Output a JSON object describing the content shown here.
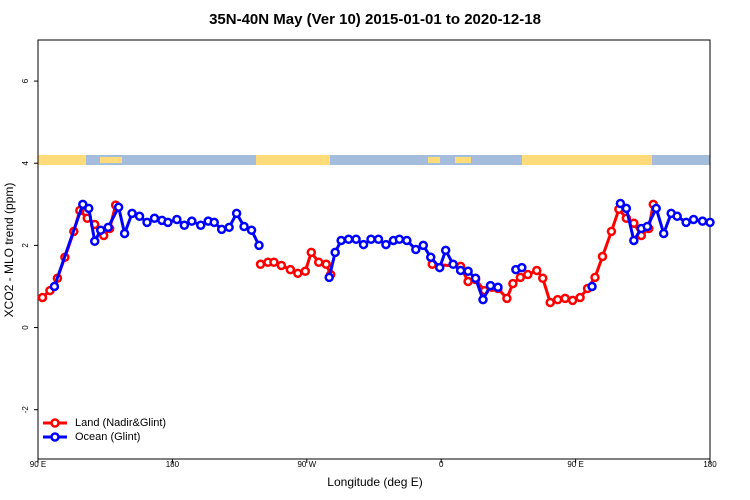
{
  "chart_data": {
    "type": "line",
    "title": "35N-40N May (Ver 10)   2015-01-01 to 2020-12-18",
    "x_label": "Longitude (deg E)",
    "y_label": "XCO2 - MLO trend (ppm)",
    "xlim": [
      90,
      540
    ],
    "xticks": [
      {
        "value": 90,
        "label": "90 E"
      },
      180,
      {
        "value": 270,
        "label": "90 W"
      },
      {
        "value": 360,
        "label": "0"
      },
      {
        "value": 450,
        "label": "90 E"
      },
      {
        "value": 540,
        "label": "180"
      }
    ],
    "ylim": [
      -3.2,
      7.0
    ],
    "yticks": [
      -2,
      0,
      2,
      4,
      6
    ],
    "legend": "bottom-left",
    "series": [
      {
        "name": "Land (Nadir&Glint)",
        "color": "#ff0000",
        "x": [
          93,
          98,
          103,
          108,
          114,
          118,
          123,
          128,
          134,
          138,
          142,
          null,
          239,
          244,
          248,
          253,
          259,
          264,
          269,
          273,
          278,
          283,
          286,
          null,
          354,
          373,
          378,
          383,
          389,
          394,
          398,
          404,
          408,
          413,
          418,
          424,
          428,
          433,
          438,
          443,
          448,
          453,
          458,
          463,
          468,
          474,
          479,
          484,
          489,
          494,
          499,
          502
        ],
        "values": [
          0.73,
          0.9,
          1.2,
          1.71,
          2.34,
          2.85,
          2.66,
          2.51,
          2.24,
          2.41,
          2.98,
          null,
          1.54,
          1.59,
          1.59,
          1.51,
          1.41,
          1.32,
          1.37,
          1.83,
          1.59,
          1.54,
          1.29,
          null,
          1.54,
          1.49,
          1.12,
          1.17,
          0.9,
          0.98,
          0.95,
          0.71,
          1.07,
          1.22,
          1.29,
          1.39,
          1.2,
          0.61,
          0.68,
          0.71,
          0.66,
          0.73,
          0.95,
          1.22,
          1.73,
          2.34,
          2.88,
          2.66,
          2.54,
          2.24,
          2.41,
          3.0
        ]
      },
      {
        "name": "Ocean (Glint)",
        "color": "#0000ff",
        "x": [
          101,
          120,
          124,
          128,
          132,
          137,
          144,
          148,
          153,
          158,
          163,
          168,
          173,
          177,
          183,
          188,
          193,
          199,
          204,
          208,
          213,
          218,
          223,
          228,
          233,
          238,
          null,
          285,
          289,
          293,
          298,
          303,
          308,
          313,
          318,
          323,
          328,
          332,
          337,
          343,
          348,
          353,
          359,
          363,
          368,
          373,
          378,
          383,
          388,
          393,
          398,
          null,
          410,
          414,
          null,
          461,
          null,
          480,
          484,
          489,
          494,
          498,
          504,
          509,
          514,
          518,
          524,
          529,
          535,
          540
        ],
        "values": [
          1.0,
          3.0,
          2.9,
          2.1,
          2.37,
          2.44,
          2.93,
          2.29,
          2.78,
          2.71,
          2.56,
          2.66,
          2.61,
          2.56,
          2.63,
          2.49,
          2.59,
          2.49,
          2.59,
          2.56,
          2.39,
          2.44,
          2.78,
          2.46,
          2.37,
          2.0,
          null,
          1.22,
          1.83,
          2.12,
          2.15,
          2.15,
          2.02,
          2.15,
          2.15,
          2.02,
          2.12,
          2.15,
          2.12,
          1.9,
          2.0,
          1.71,
          1.46,
          1.88,
          1.54,
          1.39,
          1.37,
          1.2,
          0.68,
          1.02,
          0.98,
          null,
          1.41,
          1.46,
          null,
          1.0,
          null,
          3.02,
          2.9,
          2.12,
          2.41,
          2.46,
          2.9,
          2.29,
          2.78,
          2.71,
          2.56,
          2.63,
          2.59,
          2.56
        ]
      }
    ]
  }
}
